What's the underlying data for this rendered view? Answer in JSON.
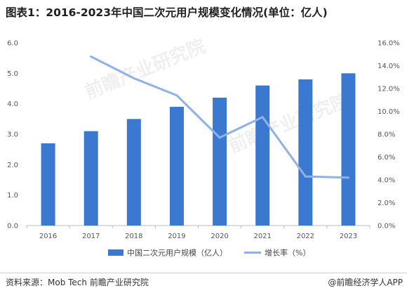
{
  "header": {
    "title": "图表1：2016-2023年中国二次元用户规模变化情况(单位：亿人)"
  },
  "footer": {
    "source": "资料来源：Mob Tech 前瞻产业研究院",
    "brand": "@前瞻经济学人APP"
  },
  "watermark": {
    "text_a": "前瞻产业研究院",
    "text_b": "前瞻产业研究院"
  },
  "chart_data": {
    "type": "bar",
    "categories": [
      "2016",
      "2017",
      "2018",
      "2019",
      "2020",
      "2021",
      "2022",
      "2023"
    ],
    "series": [
      {
        "name": "中国二次元用户规模（亿人）",
        "kind": "bar",
        "axis": "left",
        "color": "#3b78d0",
        "values": [
          2.7,
          3.1,
          3.5,
          3.9,
          4.2,
          4.6,
          4.8,
          5.0
        ]
      },
      {
        "name": "增长率（%）",
        "kind": "line",
        "axis": "right",
        "color": "#8fb0e8",
        "values": [
          null,
          14.8,
          12.9,
          11.4,
          7.7,
          9.5,
          4.3,
          4.2
        ]
      }
    ],
    "left_axis": {
      "ylim": [
        0,
        6
      ],
      "ticks": [
        "0.0",
        "1.0",
        "2.0",
        "3.0",
        "4.0",
        "5.0",
        "6.0"
      ]
    },
    "right_axis": {
      "ylim": [
        0,
        16
      ],
      "ticks": [
        "0.0%",
        "2.0%",
        "4.0%",
        "6.0%",
        "8.0%",
        "10.0%",
        "12.0%",
        "14.0%",
        "16.0%"
      ]
    },
    "grid": false,
    "legend": "bottom"
  }
}
